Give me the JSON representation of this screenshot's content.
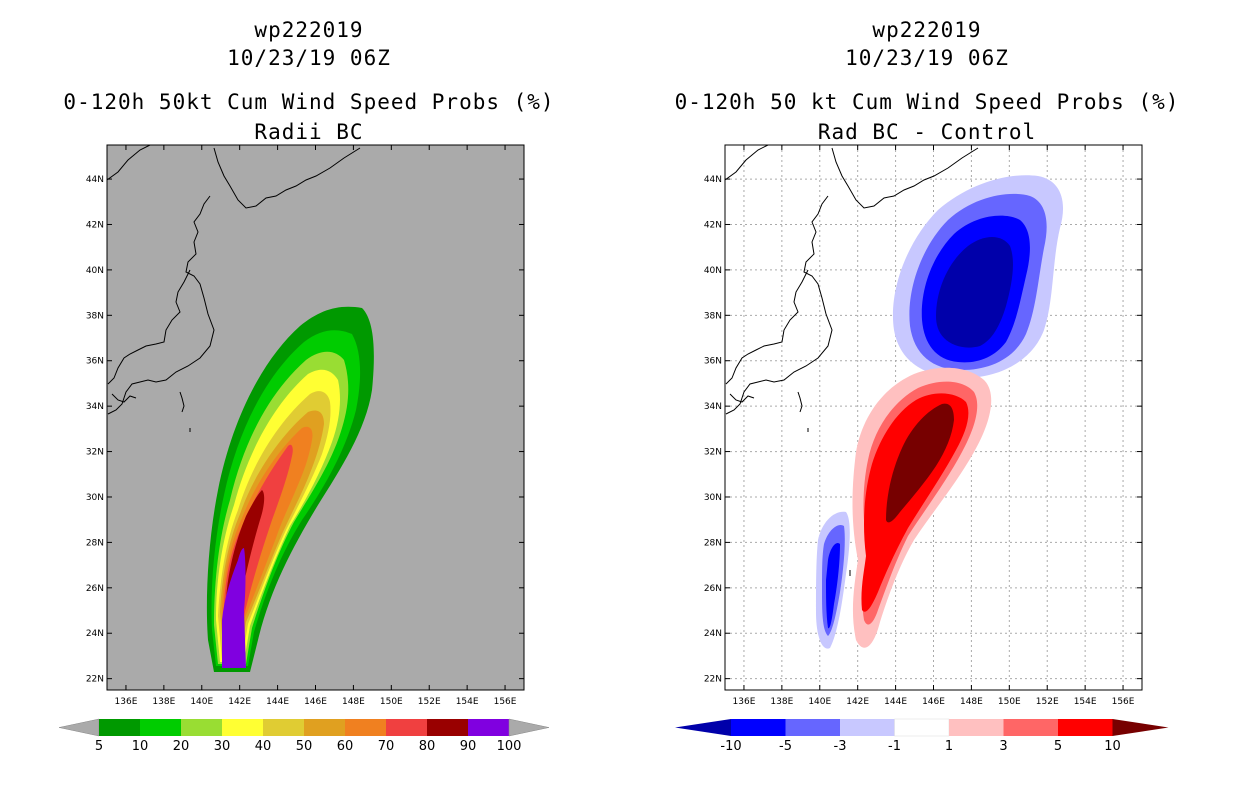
{
  "left_panel": {
    "title_line1": "wp222019",
    "title_line2": "10/23/19 06Z",
    "title_line3": "0-120h 50kt Cum Wind Speed Probs (%)",
    "title_line4": "Radii BC",
    "map_background": "#aaaaaa",
    "colorbar": {
      "colors": [
        "#009900",
        "#00cc00",
        "#99dd33",
        "#ffff33",
        "#e0cc33",
        "#e0a020",
        "#f08020",
        "#f04040",
        "#990000",
        "#8000e0"
      ],
      "end_color": "#aaaaaa",
      "labels": [
        "5",
        "10",
        "20",
        "30",
        "40",
        "50",
        "60",
        "70",
        "80",
        "90",
        "100"
      ]
    }
  },
  "right_panel": {
    "title_line1": "wp222019",
    "title_line2": "10/23/19 06Z",
    "title_line3": "0-120h 50 kt Cum Wind Speed Probs (%)",
    "title_line4": "Rad BC - Control",
    "map_background": "#ffffff",
    "colorbar": {
      "colors": [
        "#0000aa",
        "#0000ff",
        "#6666ff",
        "#c8c8ff",
        "#ffffff",
        "#ffc0c0",
        "#ff6666",
        "#ff0000",
        "#770000"
      ],
      "labels": [
        "-10",
        "-5",
        "-3",
        "-1",
        "1",
        "3",
        "5",
        "10"
      ]
    }
  },
  "axes": {
    "lon_labels": [
      "136E",
      "138E",
      "140E",
      "142E",
      "144E",
      "146E",
      "148E",
      "150E",
      "152E",
      "154E",
      "156E"
    ],
    "lat_labels": [
      "22N",
      "24N",
      "26N",
      "28N",
      "30N",
      "32N",
      "34N",
      "36N",
      "38N",
      "40N",
      "42N",
      "44N"
    ]
  },
  "map_data": {
    "type": "contour_map",
    "lon_range": [
      135,
      157
    ],
    "lat_range": [
      21.5,
      45.5
    ]
  }
}
